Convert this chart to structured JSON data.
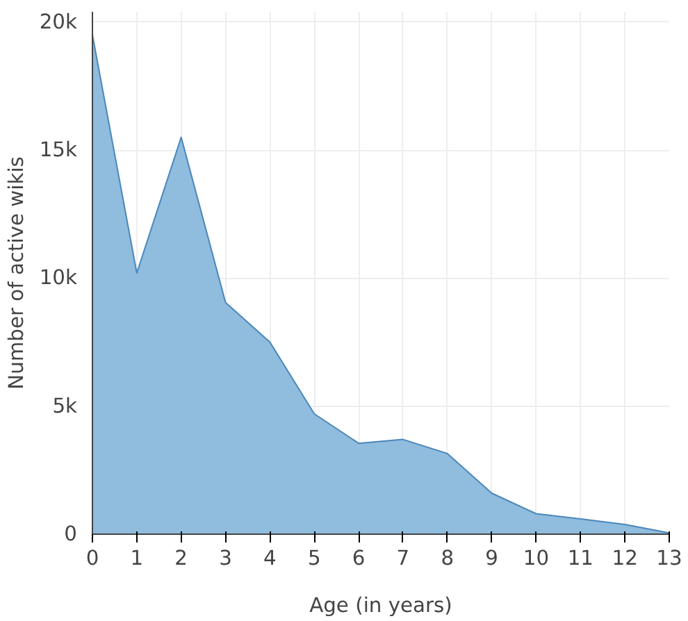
{
  "chart_data": {
    "type": "area",
    "xlabel": "Age (in years)",
    "ylabel": "Number of active wikis",
    "x": [
      0,
      1,
      2,
      3,
      4,
      5,
      6,
      7,
      8,
      9,
      10,
      11,
      12,
      13
    ],
    "series": [
      {
        "color": "#8ab8db",
        "values": [
          19500,
          10200,
          15500,
          9050,
          7500,
          4700,
          3550,
          3700,
          3150,
          1600,
          800,
          600,
          380,
          50
        ]
      }
    ],
    "xlim": [
      0,
      13
    ],
    "xticks": [
      0,
      1,
      2,
      3,
      4,
      5,
      6,
      7,
      8,
      9,
      10,
      11,
      12,
      13
    ],
    "ylim": [
      0,
      20400
    ],
    "yticks": [
      0,
      {
        "value": 5000,
        "label": "5k"
      },
      {
        "value": 10000,
        "label": "10k"
      },
      {
        "value": 15000,
        "label": "15k"
      },
      {
        "value": 20000,
        "label": "20k"
      }
    ],
    "grid": true
  }
}
